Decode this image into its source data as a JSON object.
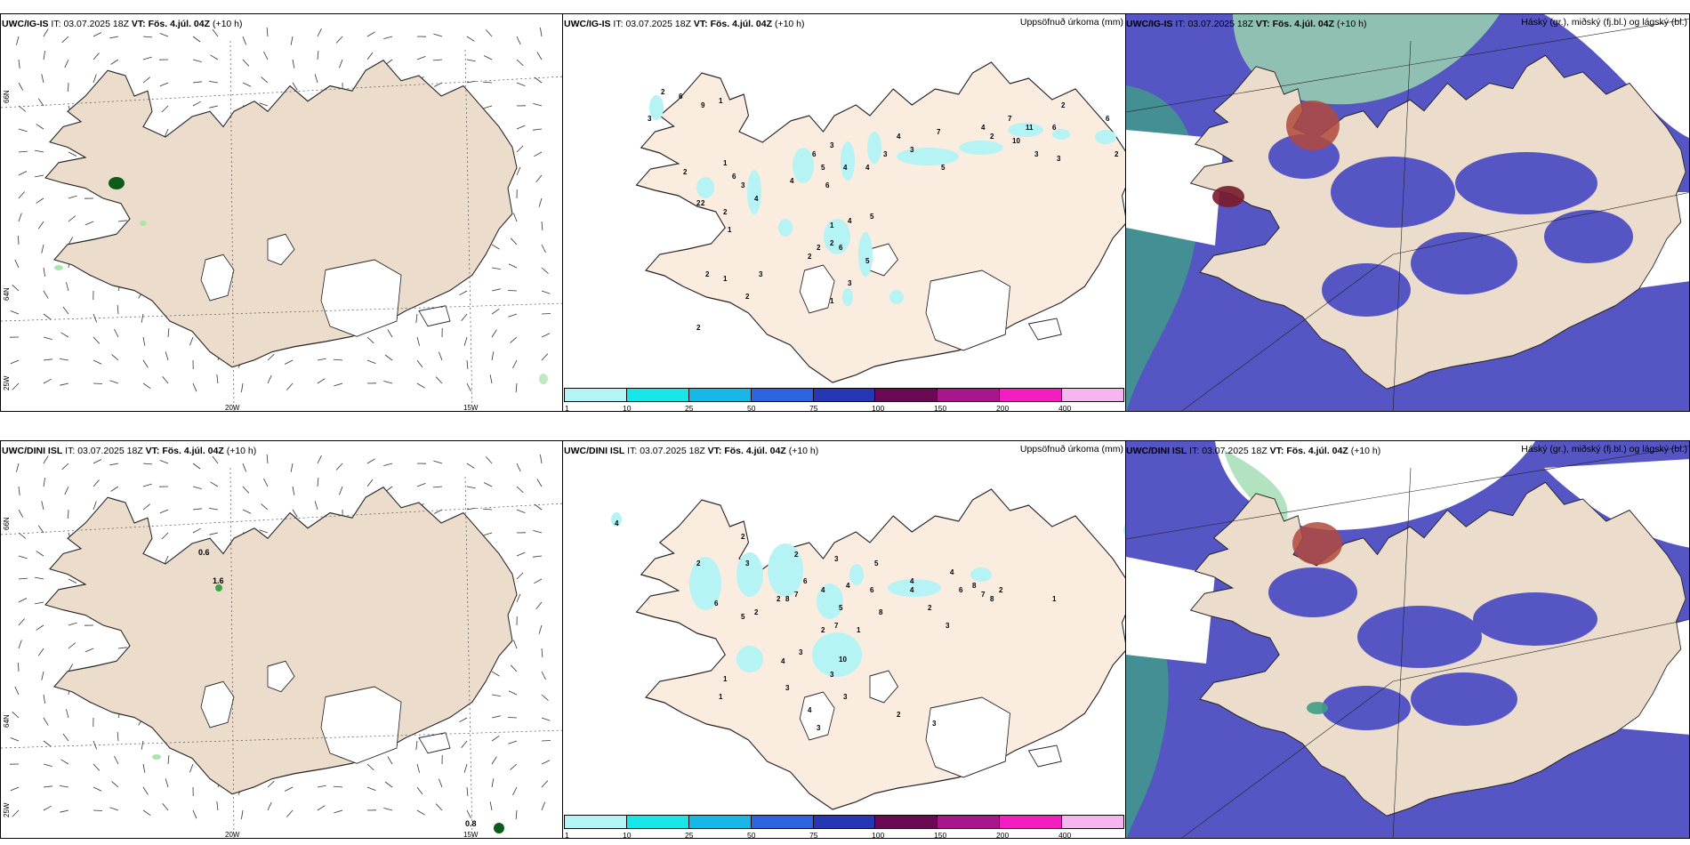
{
  "panels": [
    {
      "id": "p1",
      "model": "UWC/IG-IS",
      "it_label": "IT:",
      "it_value": "03.07.2025 18Z",
      "vt_label": "VT:",
      "vt_value": "Fös. 4.júl. 04Z",
      "offset": "(+10 h)",
      "right_title": ""
    },
    {
      "id": "p2",
      "model": "UWC/IG-IS",
      "it_label": "IT:",
      "it_value": "03.07.2025 18Z",
      "vt_label": "VT:",
      "vt_value": "Fös. 4.júl. 04Z",
      "offset": "(+10 h)",
      "right_title": "Uppsöfnuð úrkoma (mm)"
    },
    {
      "id": "p3",
      "model": "UWC/IG-IS",
      "it_label": "IT:",
      "it_value": "03.07.2025 18Z",
      "vt_label": "VT:",
      "vt_value": "Fös. 4.júl. 04Z",
      "offset": "(+10 h)",
      "right_title": "Háský (gr.), miðský (fj.bl.) og lágský (bl.)"
    },
    {
      "id": "p4",
      "model": "UWC/DINI ISL",
      "it_label": "IT:",
      "it_value": "03.07.2025 18Z",
      "vt_label": "VT:",
      "vt_value": "Fös. 4.júl. 04Z",
      "offset": "(+10 h)",
      "right_title": ""
    },
    {
      "id": "p5",
      "model": "UWC/DINI ISL",
      "it_label": "IT:",
      "it_value": "03.07.2025 18Z",
      "vt_label": "VT:",
      "vt_value": "Fös. 4.júl. 04Z",
      "offset": "(+10 h)",
      "right_title": "Uppsöfnuð úrkoma (mm)"
    },
    {
      "id": "p6",
      "model": "UWC/DINI ISL",
      "it_label": "IT:",
      "it_value": "03.07.2025 18Z",
      "vt_label": "VT:",
      "vt_value": "Fös. 4.júl. 04Z",
      "offset": "(+10 h)",
      "right_title": "Háský (gr.), miðský (fj.bl.) og lágský (bl.)"
    }
  ],
  "lon_labels": [
    "20W",
    "15W"
  ],
  "lat_labels": [
    "66N",
    "64N"
  ],
  "edge_lat_label": "25W",
  "precip_legend": {
    "colors": [
      "#b3f5f5",
      "#19e6e6",
      "#17b8e8",
      "#2f64e0",
      "#2636b5",
      "#6a0a52",
      "#a8168c",
      "#f21ec0",
      "#f5b6f0"
    ],
    "ticks": [
      "1",
      "10",
      "25",
      "50",
      "75",
      "100",
      "150",
      "200",
      "400"
    ]
  },
  "colors": {
    "land": "#ecdccc",
    "land_precip": "#fbece0",
    "precip_light": "#b5f3f5",
    "cloud_low": "#5555c4",
    "cloud_mid": "#59bb8f",
    "cloud_high": "#c9c0be"
  },
  "precip_labels_p2": [
    "2",
    "6",
    "9",
    "3",
    "1",
    "1",
    "2",
    "2",
    "6",
    "3",
    "2",
    "2",
    "4",
    "4",
    "6",
    "5",
    "3",
    "6",
    "4",
    "4",
    "3",
    "4",
    "3",
    "7",
    "5",
    "4",
    "2",
    "7",
    "10",
    "11",
    "3",
    "6",
    "3",
    "2",
    "2",
    "6",
    "10",
    "6",
    "4",
    "5",
    "1",
    "2",
    "2",
    "5",
    "2",
    "6",
    "3",
    "1",
    "2",
    "3",
    "2",
    "1",
    "1",
    "2"
  ],
  "precip_labels_p5": [
    "4",
    "2",
    "2",
    "3",
    "2",
    "6",
    "4",
    "3",
    "8",
    "2",
    "6",
    "7",
    "5",
    "4",
    "6",
    "5",
    "8",
    "4",
    "4",
    "2",
    "6",
    "8",
    "2",
    "5",
    "7",
    "2",
    "3",
    "4",
    "10",
    "1",
    "3",
    "3",
    "3",
    "4",
    "3",
    "4",
    "7",
    "8",
    "2",
    "3",
    "1",
    "1",
    "1",
    "3",
    "2"
  ],
  "wind_labels_p4": [
    "0.6",
    "1.6",
    "0.8"
  ]
}
